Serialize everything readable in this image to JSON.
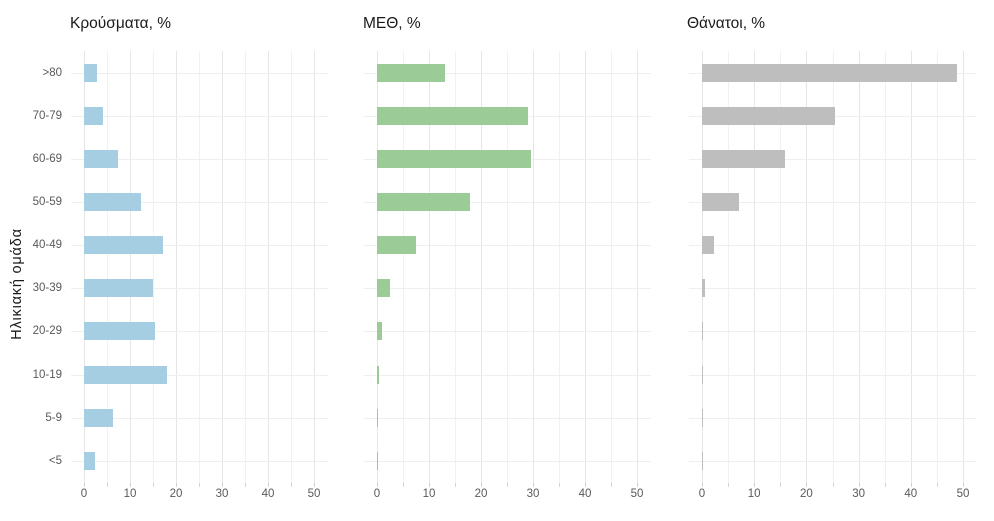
{
  "figure": {
    "y_axis_title": "Ηλικιακή ομάδα",
    "panel_titles": [
      "Κρούσματα, %",
      "ΜΕΘ, %",
      "Θάνατοι, %"
    ],
    "y_tick_labels": [
      ">80",
      "70-79",
      "60-69",
      "50-59",
      "40-49",
      "30-39",
      "20-29",
      "10-19",
      "5-9",
      "<5"
    ],
    "x_tick_labels": [
      "0",
      "10",
      "20",
      "30",
      "40",
      "50"
    ],
    "colors": {
      "cases_bar": "#A6CEE3",
      "icu_bar": "#9BCB97",
      "deaths_bar": "#BEBEBE",
      "grid_major": "#E6E6E6",
      "grid_minor": "#F1F1F1",
      "grid_horizontal": "#EFEFEF",
      "tick_mark": "#D2D2D2",
      "tick_text": "#595959",
      "title_text": "#1A1A1A",
      "background": "#FFFFFF"
    }
  },
  "chart_data": {
    "type": "bar",
    "orientation": "horizontal",
    "facet_layout": "1x3",
    "ylabel": "Ηλικιακή ομάδα",
    "categories": [
      ">80",
      "70-79",
      "60-69",
      "50-59",
      "40-49",
      "30-39",
      "20-29",
      "10-19",
      "5-9",
      "<5"
    ],
    "series": [
      {
        "name": "Κρούσματα, %",
        "key": "cases",
        "color": "#A6CEE3",
        "values": [
          2.8,
          4.2,
          7.3,
          12.4,
          17.2,
          15.0,
          15.4,
          18.0,
          6.3,
          2.4
        ]
      },
      {
        "name": "ΜΕΘ, %",
        "key": "icu",
        "color": "#9BCB97",
        "values": [
          13.1,
          29.1,
          29.6,
          17.9,
          7.5,
          2.5,
          1.0,
          0.3,
          0.12,
          0.15
        ]
      },
      {
        "name": "Θάνατοι, %",
        "key": "deaths",
        "color": "#BEBEBE",
        "values": [
          48.8,
          25.5,
          15.9,
          7.0,
          2.3,
          0.6,
          0.15,
          0.12,
          0.02,
          0.1
        ]
      }
    ],
    "xlim": [
      0,
      52.5
    ],
    "x_ticks": [
      0,
      10,
      20,
      30,
      40,
      50
    ],
    "x_minor_ticks": [
      5,
      15,
      25,
      35,
      45
    ],
    "grid": true,
    "legend": "none"
  }
}
